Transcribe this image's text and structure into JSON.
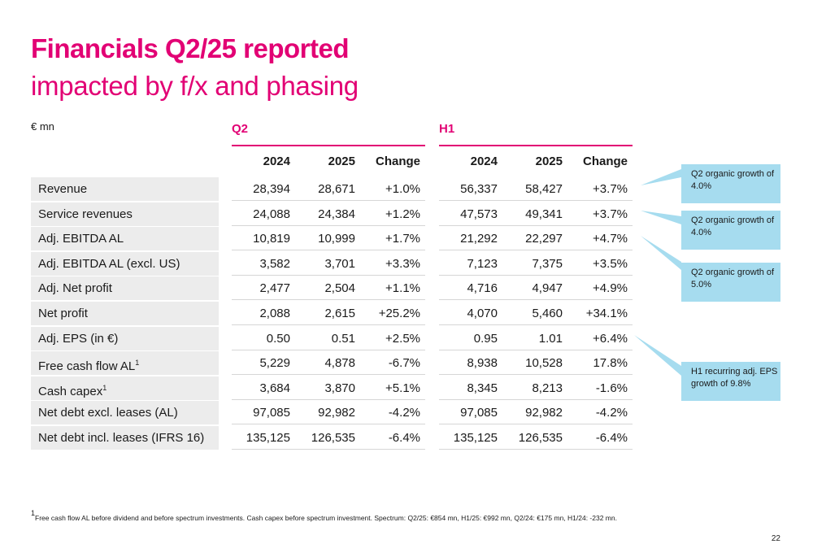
{
  "title": "Financials Q2/25 reported",
  "subtitle": "impacted by f/x and phasing",
  "unit": "€ mn",
  "periods": {
    "q2": "Q2",
    "h1": "H1"
  },
  "columns": {
    "y2024": "2024",
    "y2025": "2025",
    "change": "Change"
  },
  "rows": [
    {
      "label": "Revenue",
      "sup": "",
      "q2": [
        "28,394",
        "28,671",
        "+1.0%"
      ],
      "h1": [
        "56,337",
        "58,427",
        "+3.7%"
      ]
    },
    {
      "label": "Service revenues",
      "sup": "",
      "q2": [
        "24,088",
        "24,384",
        "+1.2%"
      ],
      "h1": [
        "47,573",
        "49,341",
        "+3.7%"
      ]
    },
    {
      "label": "Adj. EBITDA AL",
      "sup": "",
      "q2": [
        "10,819",
        "10,999",
        "+1.7%"
      ],
      "h1": [
        "21,292",
        "22,297",
        "+4.7%"
      ]
    },
    {
      "label": "Adj. EBITDA AL (excl. US)",
      "sup": "",
      "q2": [
        "3,582",
        "3,701",
        "+3.3%"
      ],
      "h1": [
        "7,123",
        "7,375",
        "+3.5%"
      ]
    },
    {
      "label": "Adj. Net profit",
      "sup": "",
      "q2": [
        "2,477",
        "2,504",
        "+1.1%"
      ],
      "h1": [
        "4,716",
        "4,947",
        "+4.9%"
      ]
    },
    {
      "label": "Net profit",
      "sup": "",
      "q2": [
        "2,088",
        "2,615",
        "+25.2%"
      ],
      "h1": [
        "4,070",
        "5,460",
        "+34.1%"
      ]
    },
    {
      "label": "Adj. EPS (in €)",
      "sup": "",
      "q2": [
        "0.50",
        "0.51",
        "+2.5%"
      ],
      "h1": [
        "0.95",
        "1.01",
        "+6.4%"
      ]
    },
    {
      "label": "Free cash flow AL",
      "sup": "1",
      "q2": [
        "5,229",
        "4,878",
        "-6.7%"
      ],
      "h1": [
        "8,938",
        "10,528",
        "17.8%"
      ]
    },
    {
      "label": "Cash capex",
      "sup": "1",
      "q2": [
        "3,684",
        "3,870",
        "+5.1%"
      ],
      "h1": [
        "8,345",
        "8,213",
        "-1.6%"
      ]
    },
    {
      "label": "Net debt excl. leases (AL)",
      "sup": "",
      "q2": [
        "97,085",
        "92,982",
        "-4.2%"
      ],
      "h1": [
        "97,085",
        "92,982",
        "-4.2%"
      ]
    },
    {
      "label": "Net debt incl. leases (IFRS 16)",
      "sup": "",
      "q2": [
        "135,125",
        "126,535",
        "-6.4%"
      ],
      "h1": [
        "135,125",
        "126,535",
        "-6.4%"
      ]
    }
  ],
  "callouts": [
    {
      "text": "Q2 organic growth of 4.0%"
    },
    {
      "text": "Q2 organic growth of 4.0%"
    },
    {
      "text": "Q2 organic growth of 5.0%"
    },
    {
      "text": "H1 recurring adj. EPS growth of 9.8%"
    }
  ],
  "footnote": {
    "sup": "1",
    "text": "Free cash flow AL before dividend and before spectrum investments. Cash capex before spectrum investment. Spectrum: Q2/25: €854 mn, H1/25: €992 mn, Q2/24: €175 mn, H1/24: -232 mn."
  },
  "page_number": "22",
  "colors": {
    "accent": "#e20074",
    "callout": "#a6dcef",
    "row_label_bg": "#ececec"
  }
}
